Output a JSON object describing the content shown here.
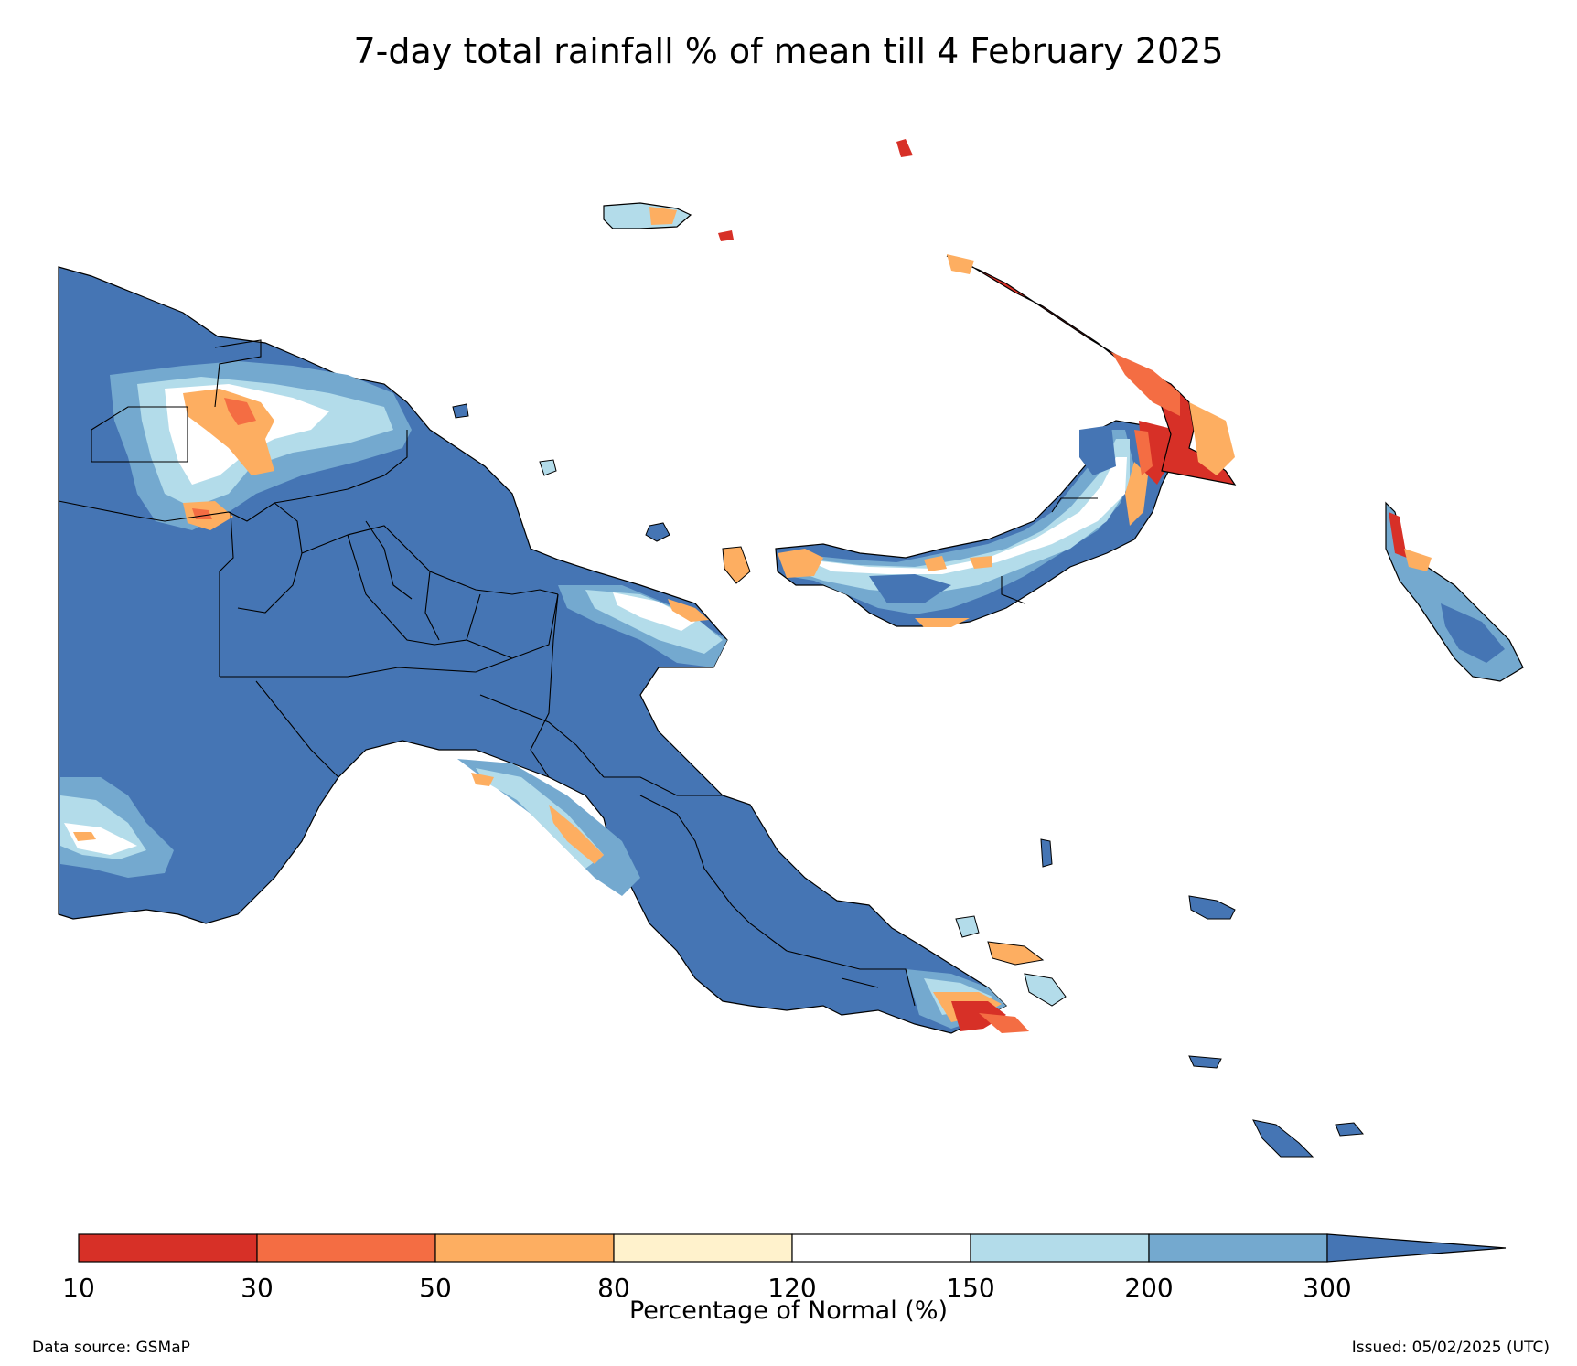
{
  "title": "7-day total rainfall % of mean till 4 February 2025",
  "colorbar": {
    "title": "Percentage of Normal (%)",
    "ticks": [
      "10",
      "30",
      "50",
      "80",
      "120",
      "150",
      "200",
      "300"
    ],
    "bins": [
      {
        "from": 10,
        "to": 30,
        "color": "#d73027"
      },
      {
        "from": 30,
        "to": 50,
        "color": "#f46d43"
      },
      {
        "from": 50,
        "to": 80,
        "color": "#fdae61"
      },
      {
        "from": 80,
        "to": 120,
        "color": "#fff2cc"
      },
      {
        "from": 120,
        "to": 150,
        "color": "#ffffff"
      },
      {
        "from": 150,
        "to": 200,
        "color": "#b3dcea"
      },
      {
        "from": 200,
        "to": 300,
        "color": "#74a9cf"
      },
      {
        "from": 300,
        "to": null,
        "color": "#4575b4"
      }
    ]
  },
  "footer": {
    "source": "Data source: GSMaP",
    "issued": "Issued: 05/02/2025 (UTC)"
  }
}
